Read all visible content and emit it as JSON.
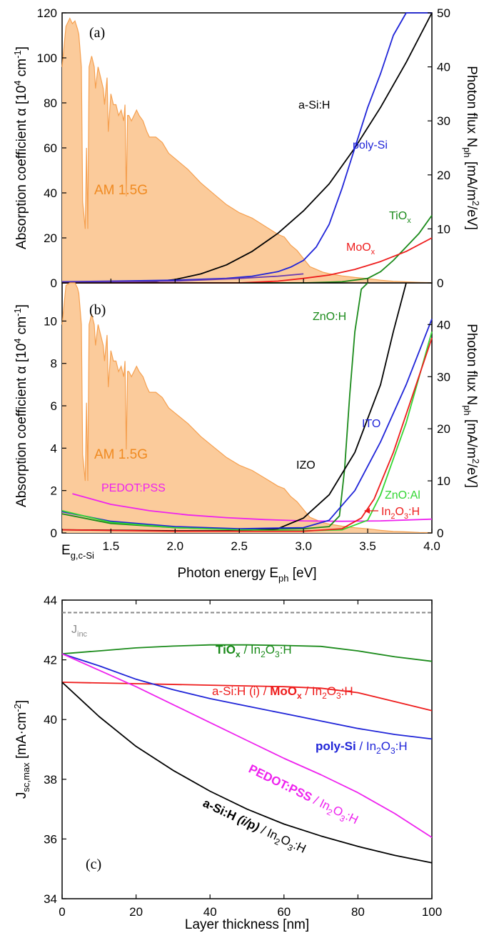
{
  "colors": {
    "am15": "#f5a050",
    "am15_fill": "#fbcb9b",
    "black": "#000000",
    "blue": "#1f24d8",
    "green": "#1a8a1a",
    "lime": "#33d633",
    "red": "#ee1c1c",
    "magenta": "#ee22ee",
    "purple": "#6a3ab0",
    "gray": "#8a8a8a"
  },
  "chart_data": [
    {
      "id": "a",
      "type": "line",
      "panel_label": "(a)",
      "ylabel_left": "Absorption coefficient α [10⁴ cm⁻¹]",
      "ylabel_right": "Photon flux Nph [mA/m²/eV]",
      "xlim": [
        1.12,
        4.0
      ],
      "ylim": [
        0,
        120
      ],
      "yticks": [
        0,
        20,
        40,
        60,
        80,
        100,
        120
      ],
      "ylim_right": [
        0,
        50
      ],
      "yticks_right": [
        0,
        10,
        20,
        30,
        40,
        50
      ],
      "am15_label": "AM 1.5G",
      "series": [
        {
          "name": "a-Si:H",
          "color": "black",
          "x": [
            1.12,
            1.5,
            1.8,
            2.0,
            2.2,
            2.4,
            2.6,
            2.8,
            3.0,
            3.2,
            3.4,
            3.6,
            3.8,
            4.0
          ],
          "y": [
            0,
            0,
            0.3,
            1.5,
            4,
            8,
            14,
            22,
            32,
            44,
            60,
            78,
            98,
            120
          ]
        },
        {
          "name": "poly-Si",
          "color": "blue",
          "x": [
            1.12,
            1.5,
            2.0,
            2.4,
            2.6,
            2.8,
            2.9,
            3.0,
            3.1,
            3.2,
            3.3,
            3.4,
            3.5,
            3.6,
            3.7,
            3.8,
            4.0
          ],
          "y": [
            0.5,
            0.8,
            1.2,
            2,
            3,
            5,
            7,
            10,
            16,
            26,
            42,
            60,
            78,
            93,
            110,
            120,
            120
          ]
        },
        {
          "name": "TiOx",
          "color": "green",
          "x": [
            1.12,
            3.0,
            3.3,
            3.5,
            3.6,
            3.7,
            3.8,
            3.9,
            4.0
          ],
          "y": [
            0,
            0,
            0.5,
            2,
            5,
            10,
            16,
            22,
            30
          ]
        },
        {
          "name": "MoOx",
          "color": "red",
          "x": [
            1.12,
            2.5,
            2.8,
            3.0,
            3.2,
            3.4,
            3.6,
            3.8,
            4.0
          ],
          "y": [
            0,
            0,
            0.8,
            2,
            3.5,
            6,
            9.5,
            14,
            20
          ]
        },
        {
          "name": "",
          "color": "purple",
          "x": [
            1.12,
            2.0,
            2.5,
            2.8,
            3.0
          ],
          "y": [
            0.3,
            0.8,
            2,
            3,
            4
          ]
        }
      ]
    },
    {
      "id": "b",
      "type": "line",
      "panel_label": "(b)",
      "xlabel": "Photon energy Eph [eV]",
      "ylabel_left": "Absorption coefficient α [10⁴ cm⁻¹]",
      "ylabel_right": "Photon flux Nph [mA/m²/eV]",
      "xlim": [
        1.12,
        4.0
      ],
      "ylim": [
        0,
        11.8
      ],
      "yticks": [
        0,
        2,
        4,
        6,
        8,
        10
      ],
      "ylim_right": [
        0,
        48
      ],
      "yticks_right": [
        0,
        10,
        20,
        30,
        40
      ],
      "xticks": [
        "Eg,c-Si",
        "1.5",
        "2.0",
        "2.5",
        "3.0",
        "3.5",
        "4.0"
      ],
      "xtick_values": [
        1.12,
        1.5,
        2.0,
        2.5,
        3.0,
        3.5,
        4.0
      ],
      "am15_label": "AM 1.5G",
      "series": [
        {
          "name": "PEDOT:PSS",
          "color": "magenta",
          "x": [
            1.2,
            1.5,
            1.8,
            2.1,
            2.4,
            2.7,
            3.0,
            3.3,
            3.6,
            4.0
          ],
          "y": [
            1.85,
            1.35,
            1.05,
            0.85,
            0.72,
            0.63,
            0.57,
            0.55,
            0.57,
            0.65
          ]
        },
        {
          "name": "ZnO:H",
          "color": "green",
          "x": [
            1.12,
            1.5,
            2.0,
            2.5,
            3.0,
            3.2,
            3.28,
            3.32,
            3.36,
            3.4,
            3.45,
            3.5
          ],
          "y": [
            0.9,
            0.45,
            0.25,
            0.18,
            0.2,
            0.3,
            0.8,
            3,
            6.5,
            9.5,
            11.5,
            11.8
          ]
        },
        {
          "name": "IZO",
          "color": "black",
          "x": [
            1.12,
            2.0,
            2.5,
            2.8,
            3.0,
            3.2,
            3.4,
            3.6,
            3.7,
            3.8
          ],
          "y": [
            0.15,
            0.1,
            0.1,
            0.2,
            0.7,
            1.8,
            3.8,
            7,
            9.5,
            11.8
          ]
        },
        {
          "name": "ITO",
          "color": "blue",
          "x": [
            1.12,
            1.5,
            2.0,
            2.5,
            3.0,
            3.2,
            3.4,
            3.6,
            3.8,
            4.0
          ],
          "y": [
            1.0,
            0.55,
            0.3,
            0.2,
            0.25,
            0.6,
            2,
            4.3,
            7,
            10.1
          ]
        },
        {
          "name": "ZnO:Al",
          "color": "lime",
          "x": [
            1.12,
            1.5,
            2.0,
            2.5,
            3.0,
            3.3,
            3.5,
            3.6,
            3.8,
            4.0
          ],
          "y": [
            1.05,
            0.5,
            0.25,
            0.15,
            0.1,
            0.15,
            0.6,
            1.8,
            5.2,
            9.5
          ]
        },
        {
          "name": "In2O3:H",
          "color": "red",
          "x": [
            1.12,
            2.0,
            3.0,
            3.3,
            3.45,
            3.55,
            3.7,
            3.85,
            4.0
          ],
          "y": [
            0.15,
            0.08,
            0.08,
            0.2,
            0.7,
            1.6,
            3.8,
            6.5,
            9.2
          ]
        }
      ]
    },
    {
      "id": "c",
      "type": "line",
      "panel_label": "(c)",
      "xlabel": "Layer thickness [nm]",
      "ylabel": "Jsc,max [mA·cm⁻²]",
      "xlim": [
        0,
        100
      ],
      "ylim": [
        34,
        44
      ],
      "xticks": [
        0,
        20,
        40,
        60,
        80,
        100
      ],
      "yticks": [
        34,
        36,
        38,
        40,
        42,
        44
      ],
      "reference": {
        "name": "Jinc",
        "value": 43.58,
        "style": "dashed",
        "color": "gray"
      },
      "series": [
        {
          "name": "TiOx / In2O3:H",
          "color": "green",
          "x": [
            0,
            10,
            20,
            30,
            40,
            50,
            60,
            70,
            80,
            90,
            100
          ],
          "y": [
            42.2,
            42.3,
            42.4,
            42.46,
            42.5,
            42.5,
            42.48,
            42.45,
            42.3,
            42.1,
            41.95
          ]
        },
        {
          "name": "a-Si:H (i) / MoOx / In2O3:H",
          "color": "red",
          "x": [
            0,
            20,
            40,
            60,
            70,
            80,
            90,
            100
          ],
          "y": [
            41.25,
            41.2,
            41.15,
            41.1,
            41.05,
            40.9,
            40.6,
            40.3
          ]
        },
        {
          "name": "poly-Si / In2O3:H",
          "color": "blue",
          "x": [
            0,
            10,
            20,
            30,
            40,
            50,
            60,
            70,
            80,
            90,
            100
          ],
          "y": [
            42.2,
            41.8,
            41.35,
            41.0,
            40.7,
            40.45,
            40.2,
            39.95,
            39.7,
            39.5,
            39.35
          ]
        },
        {
          "name": "PEDOT:PSS / In2O3:H",
          "color": "magenta",
          "x": [
            0,
            10,
            20,
            30,
            40,
            50,
            60,
            70,
            80,
            90,
            100
          ],
          "y": [
            42.2,
            41.65,
            41.1,
            40.5,
            39.9,
            39.3,
            38.7,
            38.15,
            37.55,
            36.85,
            36.05
          ]
        },
        {
          "name": "a-Si:H (i/p) / In2O3:H",
          "color": "black",
          "x": [
            0,
            10,
            20,
            30,
            40,
            50,
            60,
            70,
            80,
            90,
            100
          ],
          "y": [
            41.25,
            40.1,
            39.1,
            38.3,
            37.6,
            37.0,
            36.5,
            36.1,
            35.75,
            35.45,
            35.2
          ]
        }
      ]
    }
  ],
  "am15": {
    "x": [
      1.12,
      1.15,
      1.18,
      1.2,
      1.22,
      1.24,
      1.25,
      1.27,
      1.28,
      1.3,
      1.31,
      1.32,
      1.33,
      1.35,
      1.37,
      1.38,
      1.4,
      1.42,
      1.44,
      1.45,
      1.47,
      1.48,
      1.5,
      1.52,
      1.54,
      1.56,
      1.58,
      1.6,
      1.61,
      1.62,
      1.63,
      1.64,
      1.66,
      1.7,
      1.72,
      1.75,
      1.78,
      1.8,
      1.85,
      1.9,
      1.95,
      2.0,
      2.1,
      2.2,
      2.3,
      2.4,
      2.5,
      2.6,
      2.7,
      2.8,
      2.85,
      2.9,
      2.95,
      3.0,
      3.05,
      3.1,
      3.15,
      3.2,
      3.3,
      3.4,
      3.5,
      3.6,
      3.7,
      3.8,
      3.9,
      4.0
    ],
    "y": [
      40,
      47.5,
      49,
      48,
      48.5,
      47,
      46,
      40,
      15,
      10,
      25,
      10,
      40,
      42,
      40,
      36,
      40,
      38,
      36,
      33,
      38,
      28,
      35,
      33,
      33,
      31,
      32,
      30,
      33,
      16,
      31,
      31,
      30,
      32,
      31,
      30,
      28,
      27,
      27,
      26,
      24,
      23,
      21,
      18.5,
      16.5,
      14.5,
      13,
      12,
      10.5,
      9,
      8.5,
      7,
      6,
      4.5,
      3,
      2.5,
      2,
      1.7,
      1.3,
      1,
      0.8,
      0.5,
      0.3,
      0.2,
      0.1,
      0.05
    ]
  },
  "text": {
    "label_a": "(a)",
    "label_b": "(b)",
    "label_c": "(c)",
    "am15_a": "AM 1.5G",
    "am15_b": "AM 1.5G",
    "asih": "a-Si:H",
    "polysi": "poly-Si",
    "znoh": "ZnO:H",
    "izo": "IZO",
    "ito": "ITO",
    "pedot": "PEDOT:PSS",
    "znoal": "ZnO:Al",
    "x_eg": "E",
    "x_eg_sub": "g,c-Si",
    "xlabel_b": "Photon energy E",
    "xlabel_b_sub": "ph",
    "xlabel_b_unit": " [eV]",
    "xlabel_c": "Layer thickness [nm]",
    "jinc": "J",
    "jinc_sub": "inc"
  }
}
